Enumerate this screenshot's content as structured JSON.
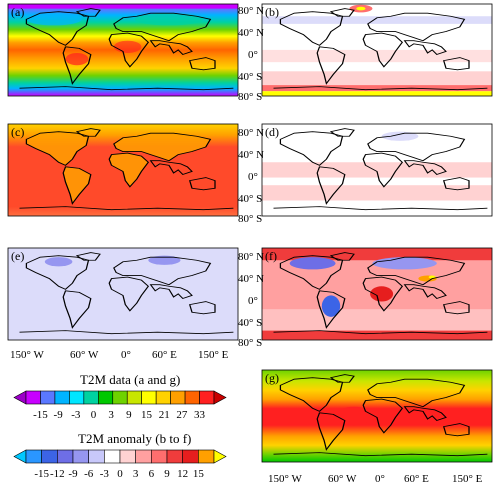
{
  "figure": {
    "panels": [
      {
        "id": "a",
        "letter": "(a)",
        "field": "T2M data"
      },
      {
        "id": "b",
        "letter": "(b)",
        "field": "T2M anomaly"
      },
      {
        "id": "c",
        "letter": "(c)",
        "field": "T2M anomaly"
      },
      {
        "id": "d",
        "letter": "(d)",
        "field": "T2M anomaly"
      },
      {
        "id": "e",
        "letter": "(e)",
        "field": "T2M anomaly"
      },
      {
        "id": "f",
        "letter": "(f)",
        "field": "T2M anomaly"
      },
      {
        "id": "g",
        "letter": "(g)",
        "field": "T2M data"
      }
    ],
    "lat_ticks": [
      "80° N",
      "40° N",
      "0°",
      "40° S",
      "80° S"
    ],
    "lon_ticks": [
      "150° W",
      "60° W",
      "0°",
      "60° E",
      "150° E"
    ],
    "colorbars": [
      {
        "id": "data",
        "title": "T2M data (a and g)",
        "ticks": [
          "-15",
          "-9",
          "-3",
          "0",
          "3",
          "9",
          "15",
          "21",
          "27",
          "33"
        ],
        "colors": [
          "#9c00c8",
          "#c800ff",
          "#5a78ff",
          "#00b4ff",
          "#00e6ff",
          "#00d2a0",
          "#00c800",
          "#6ed200",
          "#c8e600",
          "#ffff00",
          "#ffd200",
          "#ffa000",
          "#ff6400",
          "#ff2020",
          "#c80000"
        ]
      },
      {
        "id": "anomaly",
        "title": "T2M anomaly (b to f)",
        "ticks": [
          "-15",
          "-12",
          "-9",
          "-6",
          "-3",
          "0",
          "3",
          "6",
          "9",
          "12",
          "15"
        ],
        "colors": [
          "#00c8ff",
          "#2a96ff",
          "#3c64e6",
          "#6e6ee6",
          "#9696f0",
          "#c8c8fa",
          "#ffffff",
          "#ffd2d2",
          "#ffa0a0",
          "#ff6e6e",
          "#f03c3c",
          "#e61e1e",
          "#ffa000",
          "#ffff00"
        ]
      }
    ]
  }
}
